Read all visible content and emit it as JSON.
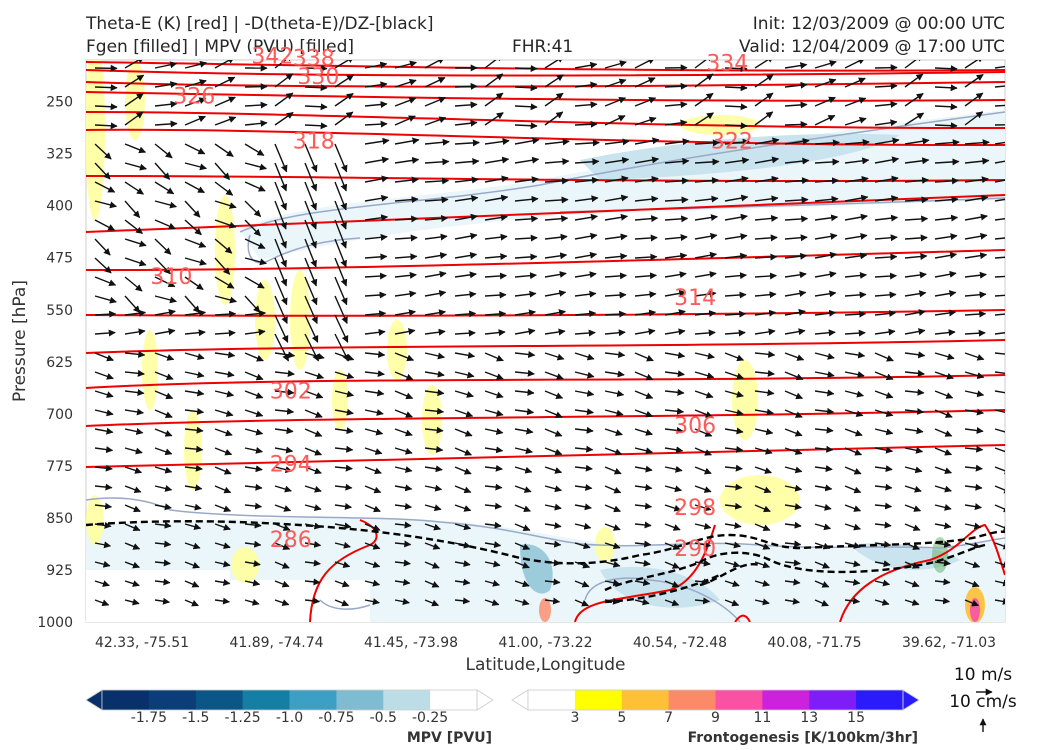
{
  "header": {
    "title_left_line1": "Theta-E (K) [red] | -D(theta-E)/DZ-[black]",
    "title_left_line2": "Fgen [filled] | MPV (PVU) [filled]",
    "fhr": "FHR:41",
    "init": "Init: 12/03/2009 @ 00:00 UTC",
    "valid": "Valid: 12/04/2009 @ 17:00 UTC"
  },
  "chart_data": {
    "type": "cross-section",
    "xlabel": "Latitude,Longitude",
    "ylabel": "Pressure [hPa]",
    "x_ticks": [
      "42.33, -75.51",
      "41.89, -74.74",
      "41.45, -73.98",
      "41.00, -73.22",
      "40.54, -72.48",
      "40.08, -71.75",
      "39.62, -71.03"
    ],
    "y_ticks": [
      250,
      325,
      400,
      475,
      550,
      625,
      700,
      775,
      850,
      925,
      1000
    ],
    "ylim": [
      1000,
      190
    ],
    "theta_e_labels": [
      {
        "value": "342",
        "x": 0.18,
        "p": 192
      },
      {
        "value": "338",
        "x": 0.225,
        "p": 195
      },
      {
        "value": "330",
        "x": 0.23,
        "p": 222
      },
      {
        "value": "326",
        "x": 0.095,
        "p": 250
      },
      {
        "value": "334",
        "x": 0.675,
        "p": 202
      },
      {
        "value": "318",
        "x": 0.225,
        "p": 315
      },
      {
        "value": "322",
        "x": 0.68,
        "p": 315
      },
      {
        "value": "310",
        "x": 0.07,
        "p": 510
      },
      {
        "value": "314",
        "x": 0.64,
        "p": 540
      },
      {
        "value": "302",
        "x": 0.2,
        "p": 675
      },
      {
        "value": "306",
        "x": 0.64,
        "p": 725
      },
      {
        "value": "294",
        "x": 0.2,
        "p": 780
      },
      {
        "value": "298",
        "x": 0.64,
        "p": 843
      },
      {
        "value": "286",
        "x": 0.2,
        "p": 889
      },
      {
        "value": "290",
        "x": 0.64,
        "p": 902
      }
    ],
    "mpv_colorbar": {
      "label": "MPV [PVU]",
      "ticks": [
        "-1.75",
        "-1.5",
        "-1.25",
        "-1.0",
        "-0.75",
        "-0.5",
        "-0.25"
      ],
      "colors": [
        "#08306b",
        "#0b3d78",
        "#0a5686",
        "#147ea5",
        "#3d9fc4",
        "#7fbcd2",
        "#bcdde6",
        "#ffffff"
      ]
    },
    "fgen_colorbar": {
      "label": "Frontogenesis [K/100km/3hr]",
      "ticks": [
        "3",
        "5",
        "7",
        "9",
        "11",
        "13",
        "15"
      ],
      "colors": [
        "#ffffff",
        "#ffff00",
        "#fec036",
        "#fb8a68",
        "#fb51a5",
        "#cc22dd",
        "#7f1df9",
        "#2a1bfb"
      ]
    },
    "reference_vectors": {
      "horizontal": "10 m/s",
      "vertical": "10 cm/s"
    }
  }
}
